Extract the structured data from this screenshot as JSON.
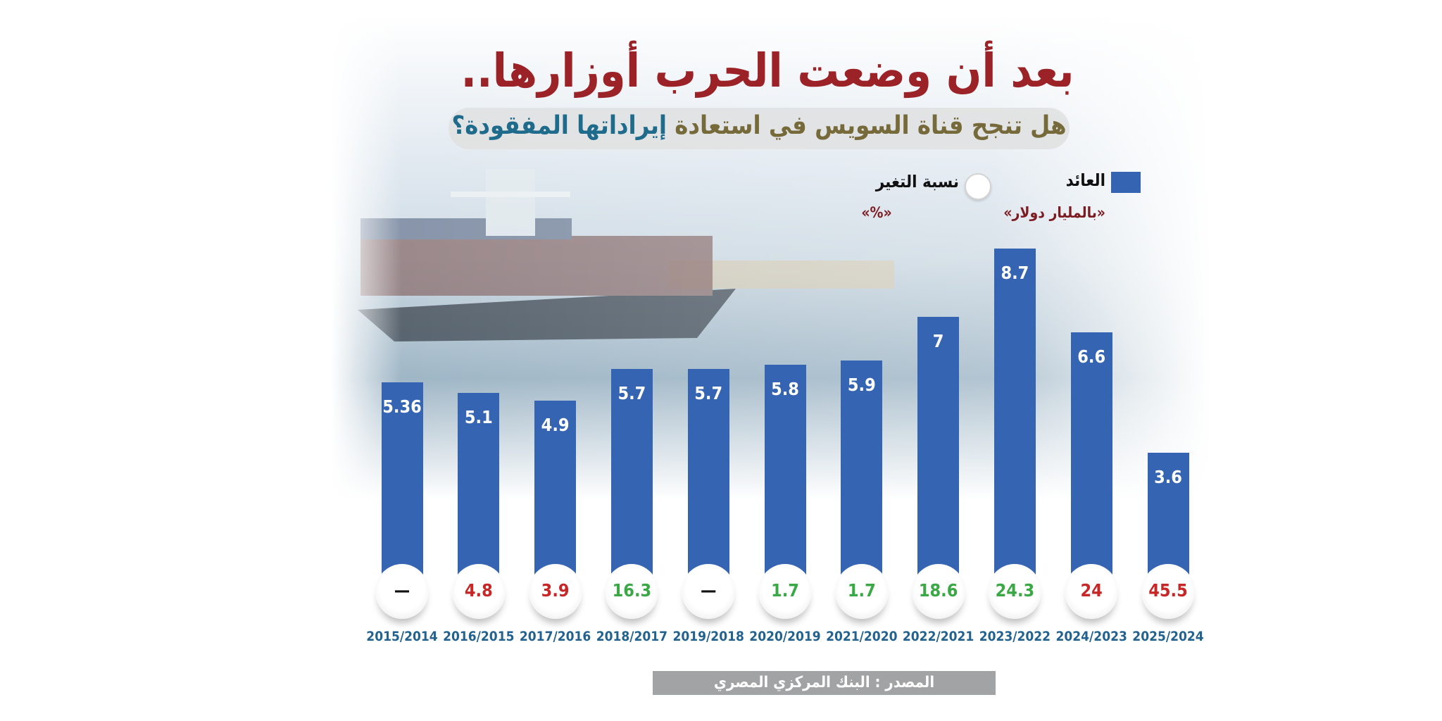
{
  "header": {
    "title": "بعد أن وضعت الحرب أوزارها..",
    "subtitle_part1": "هل تنجح قناة السويس في استعادة ",
    "subtitle_part2": "إيراداتها المفقودة؟"
  },
  "legend": {
    "revenue_label": "العائد",
    "revenue_unit": "«بالمليار دولار»",
    "change_label": "نسبة التغير",
    "change_unit": "«%»"
  },
  "source": "المصدر : البنك المركزي المصري",
  "colors": {
    "bar": "#3565b2",
    "title": "#9b2226",
    "increase": "#3aa845",
    "decrease": "#c62828",
    "year": "#23628f"
  },
  "chart_data": {
    "type": "bar",
    "categories": [
      "2015/2014",
      "2016/2015",
      "2017/2016",
      "2018/2017",
      "2019/2018",
      "2020/2019",
      "2021/2020",
      "2022/2021",
      "2023/2022",
      "2024/2023",
      "2025/2024"
    ],
    "series": [
      {
        "name": "العائد",
        "values": [
          5.36,
          5.1,
          4.9,
          5.7,
          5.7,
          5.8,
          5.9,
          7,
          8.7,
          6.6,
          3.6
        ]
      }
    ],
    "value_labels": [
      "5.36",
      "5.1",
      "4.9",
      "5.7",
      "5.7",
      "5.8",
      "5.9",
      "7",
      "8.7",
      "6.6",
      "3.6"
    ],
    "change_percent": [
      "—",
      "4.8",
      "3.9",
      "16.3",
      "—",
      "1.7",
      "1.7",
      "18.6",
      "24.3",
      "24",
      "45.5"
    ],
    "change_direction": [
      "none",
      "down",
      "down",
      "up",
      "none",
      "up",
      "up",
      "up",
      "up",
      "down",
      "down"
    ],
    "ylim": [
      0,
      8.7
    ],
    "grid": false,
    "legend_position": "top-right"
  }
}
